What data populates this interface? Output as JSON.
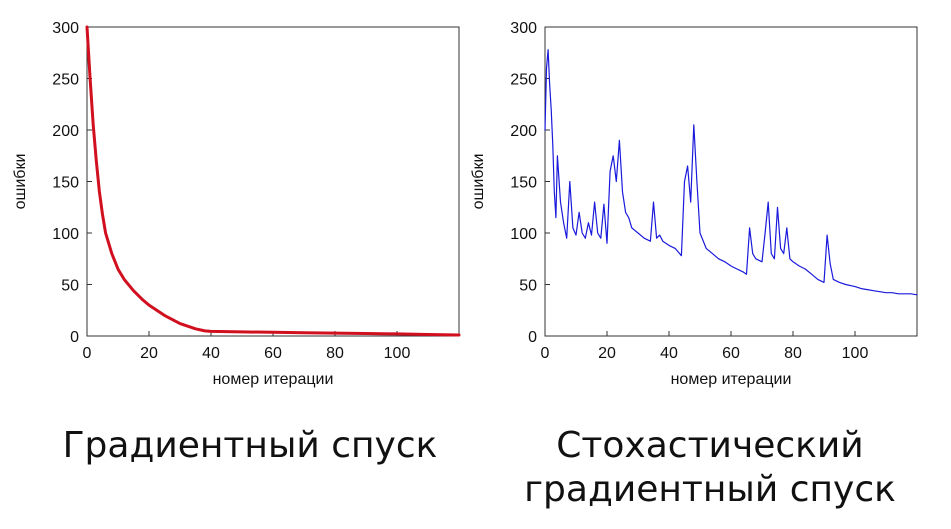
{
  "captions": {
    "left": "Градиентный спуск",
    "right_line1": "Стохастический",
    "right_line2": "градиентный спуск"
  },
  "chart_data": [
    {
      "type": "line",
      "title": "",
      "xlabel": "номер итерации",
      "ylabel": "ошибки",
      "xlim": [
        0,
        120
      ],
      "ylim": [
        0,
        300
      ],
      "xticks": [
        0,
        20,
        40,
        60,
        80,
        100
      ],
      "yticks": [
        0,
        50,
        100,
        150,
        200,
        250,
        300
      ],
      "grid": false,
      "series": [
        {
          "color": "#d10f1f",
          "x": [
            0,
            1,
            2,
            3,
            4,
            5,
            6,
            8,
            10,
            12,
            15,
            18,
            20,
            25,
            30,
            35,
            38,
            40,
            50,
            60,
            70,
            80,
            90,
            100,
            110,
            120
          ],
          "y": [
            300,
            250,
            205,
            170,
            140,
            118,
            100,
            80,
            65,
            55,
            44,
            35,
            30,
            20,
            12,
            7,
            5,
            4.5,
            4,
            3.6,
            3.2,
            2.8,
            2.4,
            2,
            1.5,
            1
          ]
        }
      ]
    },
    {
      "type": "line",
      "title": "",
      "xlabel": "номер итерации",
      "ylabel": "ошибки",
      "xlim": [
        0,
        120
      ],
      "ylim": [
        0,
        300
      ],
      "xticks": [
        0,
        20,
        40,
        60,
        80,
        100
      ],
      "yticks": [
        0,
        50,
        100,
        150,
        200,
        250,
        300
      ],
      "grid": false,
      "series": [
        {
          "color": "#1a1adc",
          "x": [
            0,
            0.5,
            1,
            1.5,
            2,
            2.5,
            3,
            3.5,
            4,
            5,
            6,
            7,
            8,
            9,
            10,
            11,
            12,
            13,
            14,
            15,
            16,
            17,
            18,
            19,
            20,
            21,
            22,
            23,
            24,
            25,
            26,
            27,
            28,
            30,
            32,
            34,
            35,
            36,
            37,
            38,
            40,
            42,
            44,
            45,
            46,
            47,
            48,
            49,
            50,
            52,
            54,
            56,
            58,
            60,
            62,
            64,
            65,
            66,
            67,
            68,
            70,
            71,
            72,
            73,
            74,
            75,
            76,
            77,
            78,
            79,
            80,
            82,
            84,
            86,
            88,
            90,
            91,
            92,
            93,
            95,
            97,
            100,
            102,
            104,
            106,
            108,
            110,
            112,
            114,
            116,
            118,
            120
          ],
          "y": [
            200,
            260,
            278,
            245,
            220,
            185,
            140,
            115,
            175,
            130,
            110,
            95,
            150,
            105,
            98,
            120,
            100,
            95,
            110,
            98,
            130,
            100,
            95,
            128,
            90,
            160,
            175,
            150,
            190,
            140,
            120,
            115,
            105,
            100,
            95,
            92,
            130,
            95,
            98,
            92,
            88,
            85,
            78,
            150,
            165,
            130,
            205,
            150,
            100,
            85,
            80,
            75,
            72,
            68,
            65,
            62,
            60,
            105,
            80,
            75,
            72,
            100,
            130,
            80,
            75,
            125,
            85,
            80,
            105,
            75,
            72,
            68,
            65,
            60,
            55,
            52,
            98,
            70,
            55,
            52,
            50,
            48,
            46,
            45,
            44,
            43,
            42,
            42,
            41,
            41,
            41,
            40
          ]
        }
      ]
    }
  ]
}
